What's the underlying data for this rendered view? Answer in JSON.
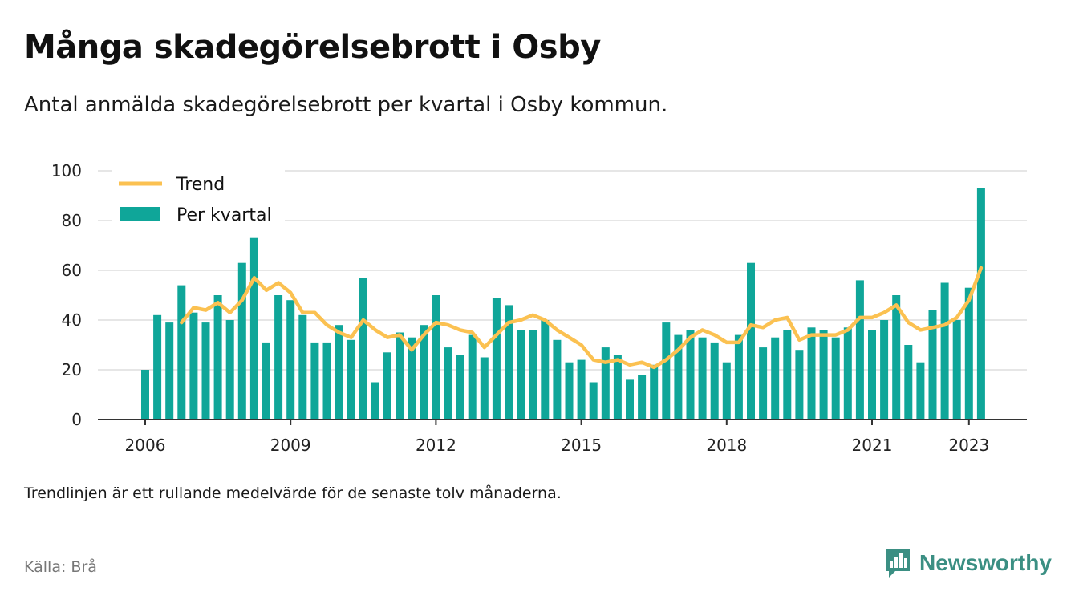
{
  "title": "Många skadegörelsebrott i Osby",
  "subtitle": "Antal anmälda skadegörelsebrott per kvartal i Osby kommun.",
  "note": "Trendlinjen är ett rullande medelvärde för de senaste tolv månaderna.",
  "source": "Källa: Brå",
  "brand": {
    "name": "Newsworthy",
    "icon": "bar-chart-speech-bubble-icon",
    "color": "#3b8f83"
  },
  "colors": {
    "bar": "#0fa699",
    "trend": "#fbc151",
    "grid": "#dddddd",
    "axis": "#333333"
  },
  "chart_data": {
    "type": "bar",
    "title": "Många skadegörelsebrott i Osby",
    "ylim": [
      0,
      100
    ],
    "yticks": [
      "0",
      "20",
      "40",
      "60",
      "80",
      "100"
    ],
    "xticks": [
      "2006",
      "2009",
      "2012",
      "2015",
      "2018",
      "2021",
      "2023"
    ],
    "grid": true,
    "legend_position": "top-left",
    "x_start": "2006 Q1",
    "series": [
      {
        "name": "Per kvartal",
        "type": "bar",
        "values": [
          20,
          42,
          39,
          54,
          43,
          39,
          50,
          40,
          63,
          73,
          31,
          50,
          48,
          42,
          31,
          31,
          38,
          32,
          57,
          15,
          27,
          35,
          33,
          38,
          50,
          29,
          26,
          34,
          25,
          49,
          46,
          36,
          36,
          40,
          32,
          23,
          24,
          15,
          29,
          26,
          16,
          18,
          22,
          39,
          34,
          36,
          33,
          31,
          23,
          34,
          63,
          29,
          33,
          36,
          28,
          37,
          36,
          33,
          37,
          56,
          36,
          40,
          50,
          30,
          23,
          44,
          55,
          40,
          53,
          93
        ]
      },
      {
        "name": "Trend",
        "type": "line",
        "values": [
          null,
          null,
          null,
          39,
          45,
          44,
          47,
          43,
          48,
          57,
          52,
          55,
          51,
          43,
          43,
          38,
          35,
          33,
          40,
          36,
          33,
          34,
          28,
          34,
          39,
          38,
          36,
          35,
          29,
          34,
          39,
          40,
          42,
          40,
          36,
          33,
          30,
          24,
          23,
          24,
          22,
          23,
          21,
          24,
          28,
          33,
          36,
          34,
          31,
          31,
          38,
          37,
          40,
          41,
          32,
          34,
          34,
          34,
          36,
          41,
          41,
          43,
          46,
          39,
          36,
          37,
          38,
          41,
          48,
          61
        ]
      }
    ]
  }
}
